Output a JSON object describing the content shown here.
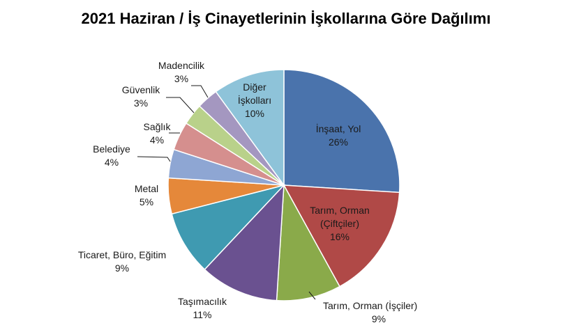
{
  "chart_data": {
    "type": "pie",
    "title": "2021 Haziran / İş Cinayetlerinin İşkollarına Göre Dağılımı",
    "slices": [
      {
        "label": [
          "İnşaat, Yol"
        ],
        "pct": "26%",
        "value": 26,
        "color": "#4a73ac"
      },
      {
        "label": [
          "Tarım, Orman",
          "(Çiftçiler)"
        ],
        "pct": "16%",
        "value": 16,
        "color": "#b04947"
      },
      {
        "label": [
          "Tarım, Orman (İşçiler)"
        ],
        "pct": "9%",
        "value": 9,
        "color": "#8aaa4a"
      },
      {
        "label": [
          "Taşımacılık"
        ],
        "pct": "11%",
        "value": 11,
        "color": "#6a5190"
      },
      {
        "label": [
          "Ticaret, Büro, Eğitim"
        ],
        "pct": "9%",
        "value": 9,
        "color": "#3f9ab1"
      },
      {
        "label": [
          "Metal"
        ],
        "pct": "5%",
        "value": 5,
        "color": "#e5883a"
      },
      {
        "label": [
          "Belediye"
        ],
        "pct": "4%",
        "value": 4,
        "color": "#8ea6d3"
      },
      {
        "label": [
          "Sağlık"
        ],
        "pct": "4%",
        "value": 4,
        "color": "#d58f8e"
      },
      {
        "label": [
          "Güvenlik"
        ],
        "pct": "3%",
        "value": 3,
        "color": "#b9d18a"
      },
      {
        "label": [
          "Madencilik"
        ],
        "pct": "3%",
        "value": 3,
        "color": "#a497c0"
      },
      {
        "label": [
          "Diğer",
          "İşkolları"
        ],
        "pct": "10%",
        "value": 10,
        "color": "#8ec3d9"
      }
    ]
  }
}
